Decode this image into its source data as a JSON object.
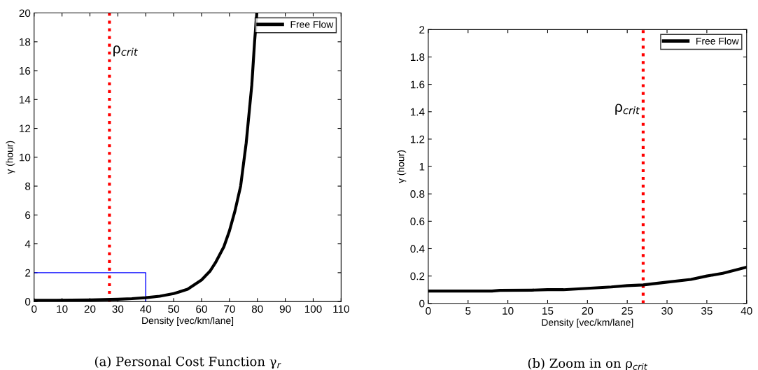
{
  "chart_data": [
    {
      "type": "line",
      "title": "(a) Personal Cost Function γ$_{r}$",
      "xlabel": "Density [vec/km/lane]",
      "ylabel": "γ (hour)",
      "xlim": [
        0,
        110
      ],
      "xticks": [
        0,
        10,
        20,
        30,
        40,
        50,
        60,
        70,
        80,
        90,
        100,
        110
      ],
      "ylim": [
        0,
        20
      ],
      "yticks": [
        0,
        2,
        4,
        6,
        8,
        10,
        12,
        14,
        16,
        18,
        20
      ],
      "legend": "top right",
      "grid": false,
      "series": [
        {
          "name": "Free Flow",
          "color": "#000000",
          "x": [
            0,
            8,
            13,
            20,
            25,
            30,
            35,
            40,
            45,
            50,
            55,
            60,
            63,
            65,
            68,
            70,
            72,
            74,
            76,
            78,
            79,
            79.8
          ],
          "values": [
            0.09,
            0.09,
            0.1,
            0.11,
            0.13,
            0.155,
            0.2,
            0.27,
            0.37,
            0.55,
            0.85,
            1.5,
            2.1,
            2.7,
            3.8,
            4.9,
            6.3,
            8,
            11,
            15,
            18,
            20
          ]
        },
        {
          "color": "#0000ff",
          "x": [
            0,
            40,
            40
          ],
          "values": [
            2,
            2,
            0
          ]
        }
      ],
      "ref_lines": [
        {
          "axis": "x",
          "value": 27,
          "label": "ρ$_{crit}$",
          "color": "#ff0000",
          "line_style": "dotted"
        }
      ]
    },
    {
      "type": "line",
      "title": "(b) Zoom in on ρ$_{crit}$",
      "xlabel": "Density [vec/km/lane]",
      "ylabel": "γ (hour)",
      "xlim": [
        0,
        40
      ],
      "xticks": [
        0,
        5,
        10,
        15,
        20,
        25,
        30,
        35,
        40
      ],
      "ylim": [
        0,
        2
      ],
      "yticks": [
        0,
        0.2,
        0.4,
        0.6,
        0.8,
        1,
        1.2,
        1.4,
        1.6,
        1.8,
        2
      ],
      "legend": "top right",
      "grid": false,
      "series": [
        {
          "name": "Free Flow",
          "color": "#000000",
          "x": [
            0,
            8,
            9,
            13,
            15,
            17,
            20,
            23,
            25,
            27,
            30,
            33,
            35,
            37,
            40
          ],
          "values": [
            0.09,
            0.09,
            0.095,
            0.097,
            0.1,
            0.1,
            0.11,
            0.12,
            0.13,
            0.135,
            0.155,
            0.175,
            0.2,
            0.22,
            0.265
          ]
        }
      ],
      "ref_lines": [
        {
          "axis": "x",
          "value": 27,
          "label": "ρ$_{crit}$",
          "color": "#ff0000",
          "line_style": "dotted"
        }
      ]
    }
  ]
}
